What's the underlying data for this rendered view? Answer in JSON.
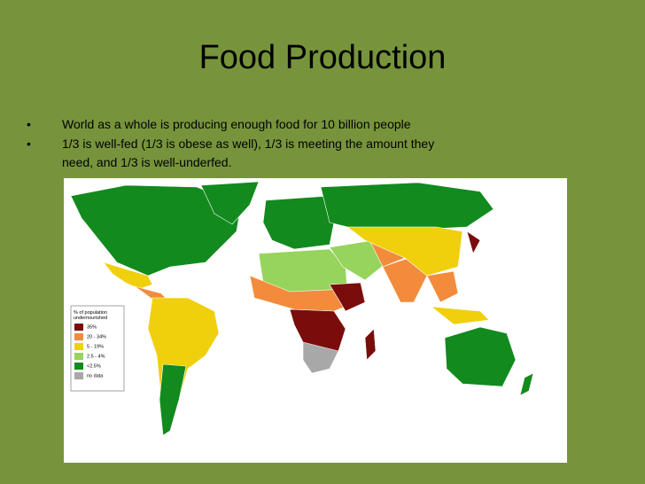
{
  "header": {
    "title": "Food Production"
  },
  "bullets": [
    "World as a whole is producing enough food for 10 billion people",
    "1/3 is well-fed (1/3 is obese as well), 1/3 is meeting the amount they need, and 1/3 is well-underfed."
  ],
  "legend": {
    "title": "% of population undernourished",
    "items": [
      {
        "label": "35%",
        "color": "#7a0c0c"
      },
      {
        "label": "20 - 34%",
        "color": "#f28c3c"
      },
      {
        "label": "5 - 19%",
        "color": "#f0cf0c"
      },
      {
        "label": "2.5 - 4%",
        "color": "#96d45c"
      },
      {
        "label": "<2.5%",
        "color": "#128a1e"
      },
      {
        "label": "no data",
        "color": "#a8a8a8"
      }
    ]
  }
}
